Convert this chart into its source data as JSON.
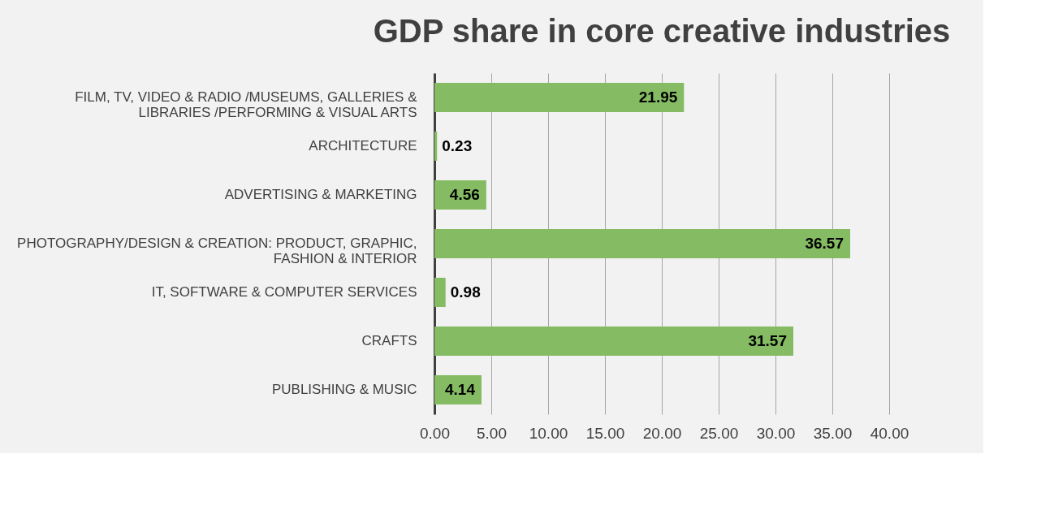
{
  "chart_data": {
    "type": "bar",
    "orientation": "horizontal",
    "title": "GDP share in core creative industries",
    "categories": [
      "FILM, TV, VIDEO & RADIO /MUSEUMS, GALLERIES & LIBRARIES /PERFORMING & VISUAL ARTS",
      "ARCHITECTURE",
      "ADVERTISING & MARKETING",
      "PHOTOGRAPHY/DESIGN & CREATION: PRODUCT, GRAPHIC, FASHION & INTERIOR",
      "IT, SOFTWARE & COMPUTER SERVICES",
      "CRAFTS",
      "PUBLISHING & MUSIC"
    ],
    "values": [
      21.95,
      0.23,
      4.56,
      36.57,
      0.98,
      31.57,
      4.14
    ],
    "color": "#84bb63",
    "xlim": [
      0,
      40
    ],
    "xticks": [
      {
        "value": 0,
        "label": "0.00"
      },
      {
        "value": 5,
        "label": "5.00"
      },
      {
        "value": 10,
        "label": "10.00"
      },
      {
        "value": 15,
        "label": "15.00"
      },
      {
        "value": 20,
        "label": "20.00"
      },
      {
        "value": 25,
        "label": "25.00"
      },
      {
        "value": 30,
        "label": "30.00"
      },
      {
        "value": 35,
        "label": "35.00"
      },
      {
        "value": 40,
        "label": "40.00"
      }
    ],
    "grid": "x",
    "data_labels": true
  }
}
